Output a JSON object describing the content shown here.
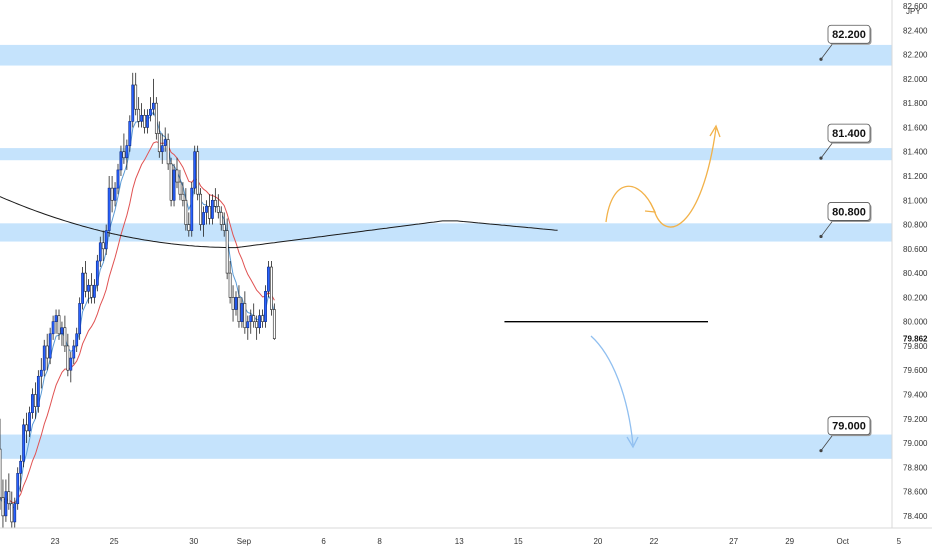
{
  "chart_data": {
    "type": "candlestick",
    "title": "",
    "currency_label": "JPY",
    "price_axis": {
      "ylim": [
        78.3,
        82.65
      ],
      "ticks": [
        "82.600",
        "82.400",
        "82.200",
        "82.000",
        "81.800",
        "81.600",
        "81.400",
        "81.200",
        "81.000",
        "80.800",
        "80.600",
        "80.400",
        "80.200",
        "80.000",
        "79.800",
        "79.600",
        "79.400",
        "79.200",
        "79.000",
        "78.800",
        "78.600",
        "78.400"
      ],
      "tick_values": [
        82.6,
        82.4,
        82.2,
        82.0,
        81.8,
        81.6,
        81.4,
        81.2,
        81.0,
        80.8,
        80.6,
        80.4,
        80.2,
        80.0,
        79.8,
        79.6,
        79.4,
        79.2,
        79.0,
        78.8,
        78.6,
        78.4
      ],
      "current_price": {
        "label": "79.862",
        "value": 79.862
      }
    },
    "time_axis": {
      "labels": [
        "23",
        "25",
        "30",
        "Sep",
        "6",
        "8",
        "13",
        "15",
        "20",
        "22",
        "27",
        "29",
        "Oct",
        "5"
      ],
      "bar_index": [
        18,
        38,
        65,
        82,
        109,
        128,
        155,
        175,
        202,
        221,
        248,
        267,
        285,
        304
      ]
    },
    "bars_per_label_unit": 1,
    "colors": {
      "up": "#2962ff",
      "down": "#ffffff",
      "wick": "#222222",
      "zone_fill": "#bbdefb",
      "ema_fast": "#5b9bd5",
      "ema_slow": "#e05252",
      "ma_long": "#1a1a1a",
      "arrow_up": "#f2b24a",
      "arrow_down": "#90bff0",
      "level_line": "#000000"
    },
    "zones": [
      {
        "label": "82.200",
        "from": 82.11,
        "to": 82.28
      },
      {
        "label": "81.400",
        "from": 81.33,
        "to": 81.43
      },
      {
        "label": "80.800",
        "from": 80.66,
        "to": 80.81
      },
      {
        "label": "79.000",
        "from": 78.87,
        "to": 79.07
      }
    ],
    "horizontal_line": {
      "value": 80.0,
      "from_bar": 171,
      "to_bar": 243
    },
    "ohlc": [
      [
        78.95,
        79.2,
        78.45,
        78.55
      ],
      [
        78.55,
        78.7,
        78.3,
        78.4
      ],
      [
        78.4,
        78.7,
        78.35,
        78.6
      ],
      [
        78.6,
        78.75,
        78.45,
        78.5
      ],
      [
        78.5,
        78.6,
        78.3,
        78.35
      ],
      [
        78.35,
        78.55,
        78.3,
        78.5
      ],
      [
        78.5,
        78.8,
        78.45,
        78.75
      ],
      [
        78.75,
        78.9,
        78.6,
        78.85
      ],
      [
        78.85,
        79.2,
        78.8,
        79.15
      ],
      [
        79.15,
        79.25,
        79.0,
        79.1
      ],
      [
        79.1,
        79.3,
        79.05,
        79.25
      ],
      [
        79.25,
        79.45,
        79.2,
        79.4
      ],
      [
        79.4,
        79.5,
        79.2,
        79.3
      ],
      [
        79.3,
        79.6,
        79.25,
        79.55
      ],
      [
        79.55,
        79.7,
        79.45,
        79.6
      ],
      [
        79.6,
        79.85,
        79.55,
        79.8
      ],
      [
        79.8,
        79.9,
        79.6,
        79.7
      ],
      [
        79.7,
        79.95,
        79.65,
        79.9
      ],
      [
        79.9,
        80.05,
        79.85,
        80.0
      ],
      [
        80.0,
        80.1,
        79.9,
        80.05
      ],
      [
        80.05,
        80.1,
        79.85,
        79.9
      ],
      [
        79.9,
        80.0,
        79.8,
        79.95
      ],
      [
        79.95,
        80.05,
        79.75,
        79.8
      ],
      [
        79.8,
        79.9,
        79.55,
        79.6
      ],
      [
        79.6,
        79.75,
        79.5,
        79.7
      ],
      [
        79.7,
        79.85,
        79.65,
        79.8
      ],
      [
        79.8,
        79.95,
        79.75,
        79.9
      ],
      [
        79.9,
        80.2,
        79.85,
        80.15
      ],
      [
        80.15,
        80.45,
        80.1,
        80.4
      ],
      [
        80.4,
        80.5,
        80.2,
        80.25
      ],
      [
        80.25,
        80.35,
        80.15,
        80.3
      ],
      [
        80.3,
        80.4,
        80.15,
        80.2
      ],
      [
        80.2,
        80.35,
        80.15,
        80.3
      ],
      [
        80.3,
        80.55,
        80.25,
        80.5
      ],
      [
        80.5,
        80.7,
        80.45,
        80.65
      ],
      [
        80.65,
        80.75,
        80.5,
        80.6
      ],
      [
        80.6,
        80.8,
        80.55,
        80.75
      ],
      [
        80.75,
        81.2,
        80.7,
        81.1
      ],
      [
        81.1,
        81.2,
        80.9,
        81.0
      ],
      [
        81.0,
        81.15,
        80.95,
        81.1
      ],
      [
        81.1,
        81.3,
        81.05,
        81.25
      ],
      [
        81.25,
        81.45,
        81.2,
        81.4
      ],
      [
        81.4,
        81.55,
        81.3,
        81.35
      ],
      [
        81.35,
        81.5,
        81.25,
        81.45
      ],
      [
        81.45,
        81.7,
        81.4,
        81.65
      ],
      [
        81.65,
        82.05,
        81.6,
        81.95
      ],
      [
        81.95,
        82.05,
        81.7,
        81.75
      ],
      [
        81.75,
        81.85,
        81.6,
        81.65
      ],
      [
        81.65,
        81.8,
        81.6,
        81.7
      ],
      [
        81.7,
        81.75,
        81.55,
        81.6
      ],
      [
        81.6,
        81.75,
        81.55,
        81.7
      ],
      [
        81.7,
        81.85,
        81.65,
        81.75
      ],
      [
        81.75,
        82.0,
        81.7,
        81.8
      ],
      [
        81.8,
        81.85,
        81.5,
        81.55
      ],
      [
        81.55,
        81.65,
        81.35,
        81.4
      ],
      [
        81.4,
        81.55,
        81.3,
        81.45
      ],
      [
        81.45,
        81.6,
        81.4,
        81.5
      ],
      [
        81.5,
        81.55,
        81.25,
        81.3
      ],
      [
        81.3,
        81.35,
        80.95,
        81.0
      ],
      [
        81.0,
        81.3,
        80.95,
        81.25
      ],
      [
        81.25,
        81.35,
        81.1,
        81.15
      ],
      [
        81.15,
        81.25,
        81.0,
        81.05
      ],
      [
        81.05,
        81.15,
        80.95,
        81.0
      ],
      [
        81.0,
        81.1,
        80.75,
        80.8
      ],
      [
        80.8,
        80.9,
        80.7,
        80.75
      ],
      [
        80.75,
        81.15,
        80.7,
        81.1
      ],
      [
        81.1,
        81.45,
        81.05,
        81.4
      ],
      [
        81.4,
        81.45,
        81.0,
        81.05
      ],
      [
        81.05,
        81.1,
        80.75,
        80.8
      ],
      [
        80.8,
        80.95,
        80.7,
        80.9
      ],
      [
        80.9,
        81.0,
        80.8,
        80.95
      ],
      [
        80.95,
        81.05,
        80.8,
        80.85
      ],
      [
        80.85,
        81.05,
        80.8,
        81.0
      ],
      [
        81.0,
        81.1,
        80.9,
        80.95
      ],
      [
        80.95,
        81.05,
        80.85,
        80.9
      ],
      [
        80.9,
        80.95,
        80.75,
        80.8
      ],
      [
        80.8,
        80.9,
        80.7,
        80.75
      ],
      [
        80.75,
        80.85,
        80.35,
        80.4
      ],
      [
        80.4,
        80.5,
        80.15,
        80.2
      ],
      [
        80.2,
        80.3,
        80.0,
        80.1
      ],
      [
        80.1,
        80.25,
        80.05,
        80.2
      ],
      [
        80.2,
        80.3,
        79.95,
        80.0
      ],
      [
        80.0,
        80.2,
        79.95,
        80.15
      ],
      [
        80.15,
        80.25,
        79.9,
        79.95
      ],
      [
        79.95,
        80.05,
        79.85,
        80.0
      ],
      [
        80.0,
        80.1,
        79.9,
        80.05
      ],
      [
        80.05,
        80.15,
        79.95,
        80.0
      ],
      [
        80.0,
        80.05,
        79.85,
        79.95
      ],
      [
        79.95,
        80.1,
        79.9,
        80.05
      ],
      [
        80.05,
        80.1,
        79.95,
        80.0
      ],
      [
        80.0,
        80.3,
        79.95,
        80.25
      ],
      [
        80.25,
        80.5,
        80.2,
        80.45
      ],
      [
        80.45,
        80.5,
        80.05,
        80.1
      ],
      [
        80.1,
        80.15,
        79.85,
        79.86
      ]
    ]
  },
  "annotations": {
    "arrow_up_color_name": "orange-forecast-path",
    "arrow_down_color_name": "blue-forecast-path"
  }
}
